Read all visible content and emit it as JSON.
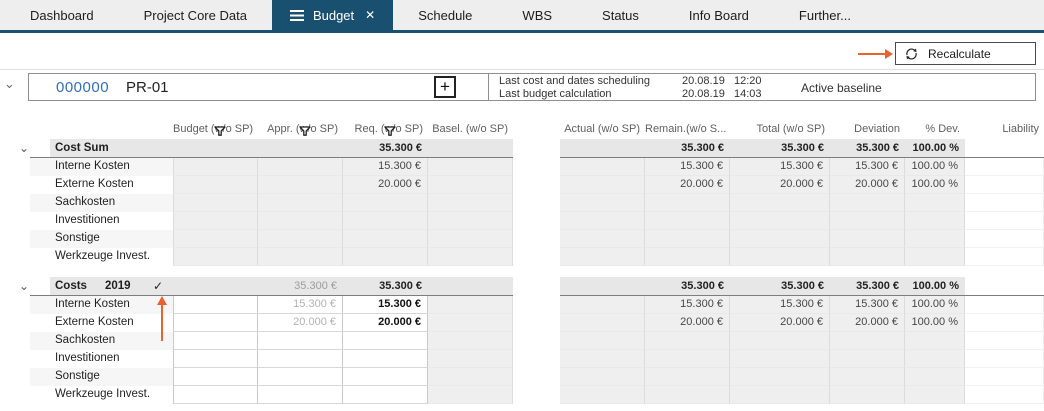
{
  "tab_bar": {
    "tabs": [
      {
        "label": "Dashboard",
        "active": false
      },
      {
        "label": "Project Core Data",
        "active": false
      },
      {
        "label": "Budget",
        "active": true
      },
      {
        "label": "Schedule",
        "active": false
      },
      {
        "label": "WBS",
        "active": false
      },
      {
        "label": "Status",
        "active": false
      },
      {
        "label": "Info Board",
        "active": false
      },
      {
        "label": "Further...",
        "active": false
      }
    ]
  },
  "toolbar": {
    "recalculate_label": "Recalculate"
  },
  "project_header": {
    "number": "000000",
    "code": "PR-01",
    "add_button": "+",
    "info_rows": [
      {
        "label": "Last cost and dates scheduling",
        "date": "20.08.19",
        "time": "12:20"
      },
      {
        "label": "Last budget calculation",
        "date": "20.08.19",
        "time": "14:03"
      }
    ],
    "baseline_label": "Active baseline"
  },
  "table": {
    "column_headers_left": [
      "Budget (w/o SP)",
      "Appr. (w/o SP)",
      "Req. (w/o SP)",
      "Basel. (w/o SP)"
    ],
    "column_headers_right": [
      "Actual (w/o SP)",
      "Remain.(w/o S...",
      "Total (w/o SP)",
      "Deviation",
      "% Dev.",
      "Liability"
    ],
    "filtered_columns": [
      "Budget (w/o SP)",
      "Appr. (w/o SP)",
      "Req. (w/o SP)"
    ],
    "groups": [
      {
        "label": "Cost Sum",
        "year": "",
        "checked": false,
        "editable_columns": [],
        "totals": {
          "budget": "",
          "appr": "",
          "req": "35.300 €",
          "basel": "",
          "actual": "",
          "remain": "35.300 €",
          "total": "35.300 €",
          "deviation": "35.300 €",
          "pdev": "100.00 %",
          "liability": ""
        },
        "rows": [
          {
            "label": "Interne Kosten",
            "req": "15.300 €",
            "remain": "15.300 €",
            "total": "15.300 €",
            "deviation": "15.300 €",
            "pdev": "100.00 %"
          },
          {
            "label": "Externe Kosten",
            "req": "20.000 €",
            "remain": "20.000 €",
            "total": "20.000 €",
            "deviation": "20.000 €",
            "pdev": "100.00 %"
          },
          {
            "label": "Sachkosten"
          },
          {
            "label": "Investitionen"
          },
          {
            "label": "Sonstige"
          },
          {
            "label": "Werkzeuge Invest."
          }
        ]
      },
      {
        "label": "Costs",
        "year": "2019",
        "checked": true,
        "editable_columns": [
          "budget",
          "appr",
          "req"
        ],
        "totals": {
          "budget": "",
          "appr": "35.300 €",
          "req": "35.300 €",
          "basel": "",
          "actual": "",
          "remain": "35.300 €",
          "total": "35.300 €",
          "deviation": "35.300 €",
          "pdev": "100.00 %",
          "liability": ""
        },
        "rows": [
          {
            "label": "Interne Kosten",
            "appr": "15.300 €",
            "req": "15.300 €",
            "remain": "15.300 €",
            "total": "15.300 €",
            "deviation": "15.300 €",
            "pdev": "100.00 %"
          },
          {
            "label": "Externe Kosten",
            "appr": "20.000 €",
            "req": "20.000 €",
            "remain": "20.000 €",
            "total": "20.000 €",
            "deviation": "20.000 €",
            "pdev": "100.00 %"
          },
          {
            "label": "Sachkosten"
          },
          {
            "label": "Investitionen"
          },
          {
            "label": "Sonstige"
          },
          {
            "label": "Werkzeuge Invest."
          }
        ]
      }
    ]
  },
  "colors": {
    "accent_navy": "#1a506f",
    "highlight_orange": "#e8622d",
    "link_blue": "#2f6fba"
  }
}
